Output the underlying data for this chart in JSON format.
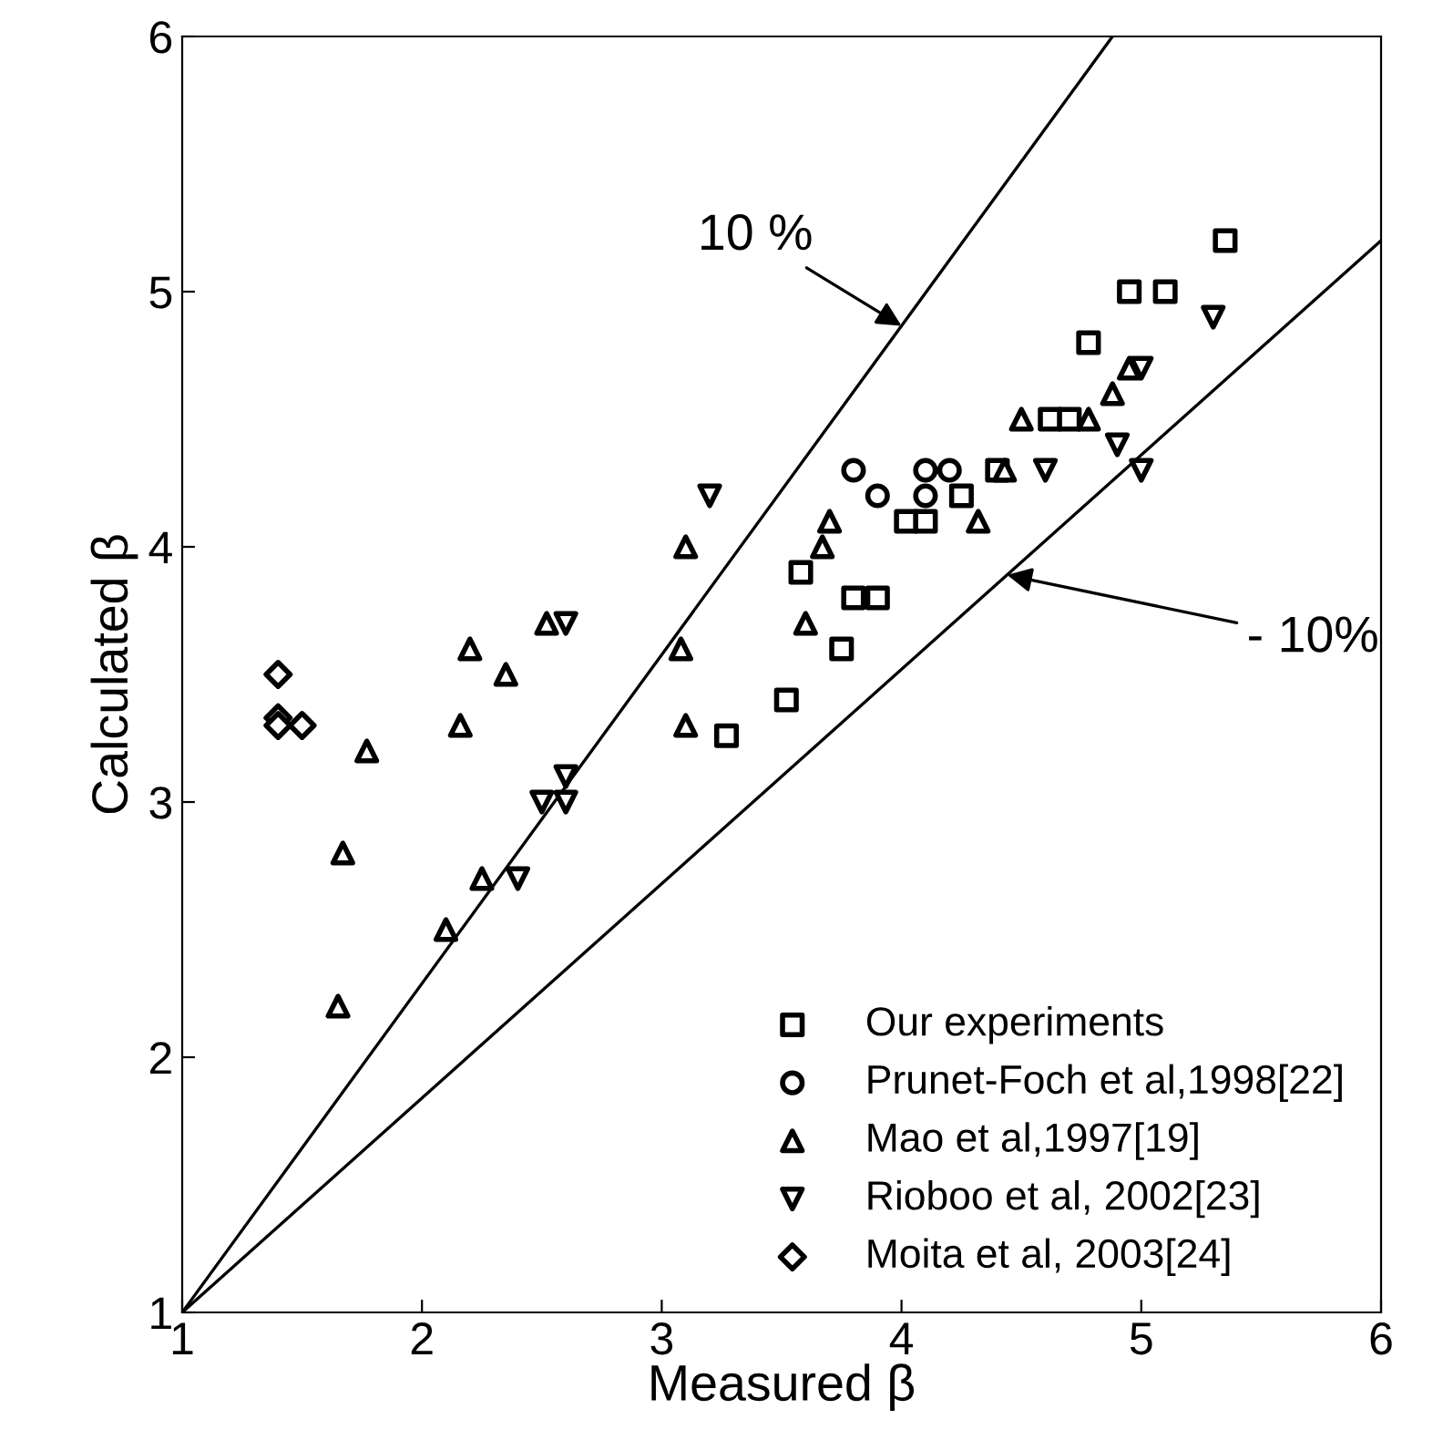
{
  "chart_data": {
    "type": "scatter",
    "xlabel": "Measured β",
    "ylabel": "Calculated β",
    "xlim": [
      1,
      6
    ],
    "ylim": [
      1,
      6
    ],
    "xticks": [
      1,
      2,
      3,
      4,
      5,
      6
    ],
    "yticks": [
      1,
      2,
      3,
      4,
      5,
      6
    ],
    "grid": false,
    "legend": "bottom right",
    "series": [
      {
        "name": "Our experiments",
        "color": "#000000",
        "marker": "square",
        "x": [
          3.27,
          3.52,
          3.58,
          3.75,
          3.8,
          3.9,
          4.02,
          4.1,
          4.25,
          4.4,
          4.62,
          4.7,
          4.78,
          4.95,
          5.1,
          5.35
        ],
        "values": [
          3.26,
          3.4,
          3.9,
          3.6,
          3.8,
          3.8,
          4.1,
          4.1,
          4.2,
          4.3,
          4.5,
          4.5,
          4.8,
          5.0,
          5.0,
          5.2
        ]
      },
      {
        "name": "Prunet-Foch et al,1998[22]",
        "color": "#000000",
        "marker": "circle",
        "x": [
          3.8,
          3.9,
          4.1,
          4.1,
          4.2
        ],
        "values": [
          4.3,
          4.2,
          4.3,
          4.2,
          4.3
        ]
      },
      {
        "name": "Mao et al,1997[19]",
        "color": "#000000",
        "marker": "triangle",
        "x": [
          1.65,
          1.67,
          1.77,
          2.1,
          2.16,
          2.2,
          2.25,
          2.35,
          2.52,
          3.08,
          3.1,
          3.1,
          3.6,
          3.67,
          3.7,
          4.32,
          4.43,
          4.5,
          4.78,
          4.88,
          4.95
        ],
        "values": [
          2.2,
          2.8,
          3.2,
          2.5,
          3.3,
          3.6,
          2.7,
          3.5,
          3.7,
          3.6,
          4.0,
          3.3,
          3.7,
          4.0,
          4.1,
          4.1,
          4.3,
          4.5,
          4.5,
          4.6,
          4.7
        ]
      },
      {
        "name": "Rioboo et al, 2002[23]",
        "color": "#000000",
        "marker": "triangle_down",
        "x": [
          2.4,
          2.5,
          2.6,
          2.6,
          2.6,
          3.2,
          4.6,
          4.9,
          5.0,
          5.0,
          5.3
        ],
        "values": [
          2.7,
          3.0,
          3.0,
          3.1,
          3.7,
          4.2,
          4.3,
          4.4,
          4.3,
          4.7,
          4.9
        ]
      },
      {
        "name": "Moita et al, 2003[24]",
        "color": "#000000",
        "marker": "diamond",
        "x": [
          1.4,
          1.4,
          1.4,
          1.5
        ],
        "values": [
          3.5,
          3.33,
          3.3,
          3.3
        ]
      },
      {
        "type": "line",
        "color": "#000000",
        "x": [
          1,
          4.88
        ],
        "values": [
          1,
          6
        ]
      },
      {
        "type": "line",
        "color": "#000000",
        "x": [
          1,
          6
        ],
        "values": [
          1,
          5.2
        ]
      }
    ],
    "annotations": [
      {
        "text": "10 %",
        "x": 4.0,
        "y": 4.866
      },
      {
        "text": "- 10%",
        "x": 4.44,
        "y": 3.89
      }
    ]
  }
}
